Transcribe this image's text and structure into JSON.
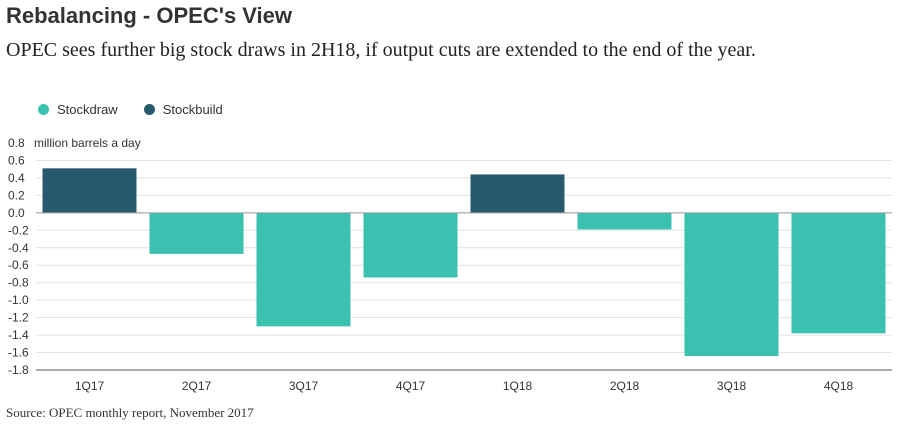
{
  "header": {
    "title": "Rebalancing - OPEC's View",
    "subtitle": "OPEC sees further big stock draws in 2H18, if output cuts are extended to the end of the year."
  },
  "legend": [
    {
      "label": "Stockdraw",
      "color": "#3bc1b0"
    },
    {
      "label": "Stockbuild",
      "color": "#285a6e"
    }
  ],
  "source": "Source: OPEC monthly report, November 2017",
  "chart_data": {
    "type": "bar",
    "categories": [
      "1Q17",
      "2Q17",
      "3Q17",
      "4Q17",
      "1Q18",
      "2Q18",
      "3Q18",
      "4Q18"
    ],
    "values": [
      0.51,
      -0.47,
      -1.3,
      -0.74,
      0.44,
      -0.19,
      -1.64,
      -1.38
    ],
    "ylabel": "million barrels a day",
    "ylim": [
      -1.8,
      0.8
    ],
    "yticks": [
      "0.8",
      "0.6",
      "0.4",
      "0.2",
      "0.0",
      "-0.2",
      "-0.4",
      "-0.6",
      "-0.8",
      "-1.0",
      "-1.2",
      "-1.4",
      "-1.6",
      "-1.8"
    ],
    "colors": {
      "positive": "#285a6e",
      "negative": "#3bc1b0"
    },
    "grid": true
  }
}
